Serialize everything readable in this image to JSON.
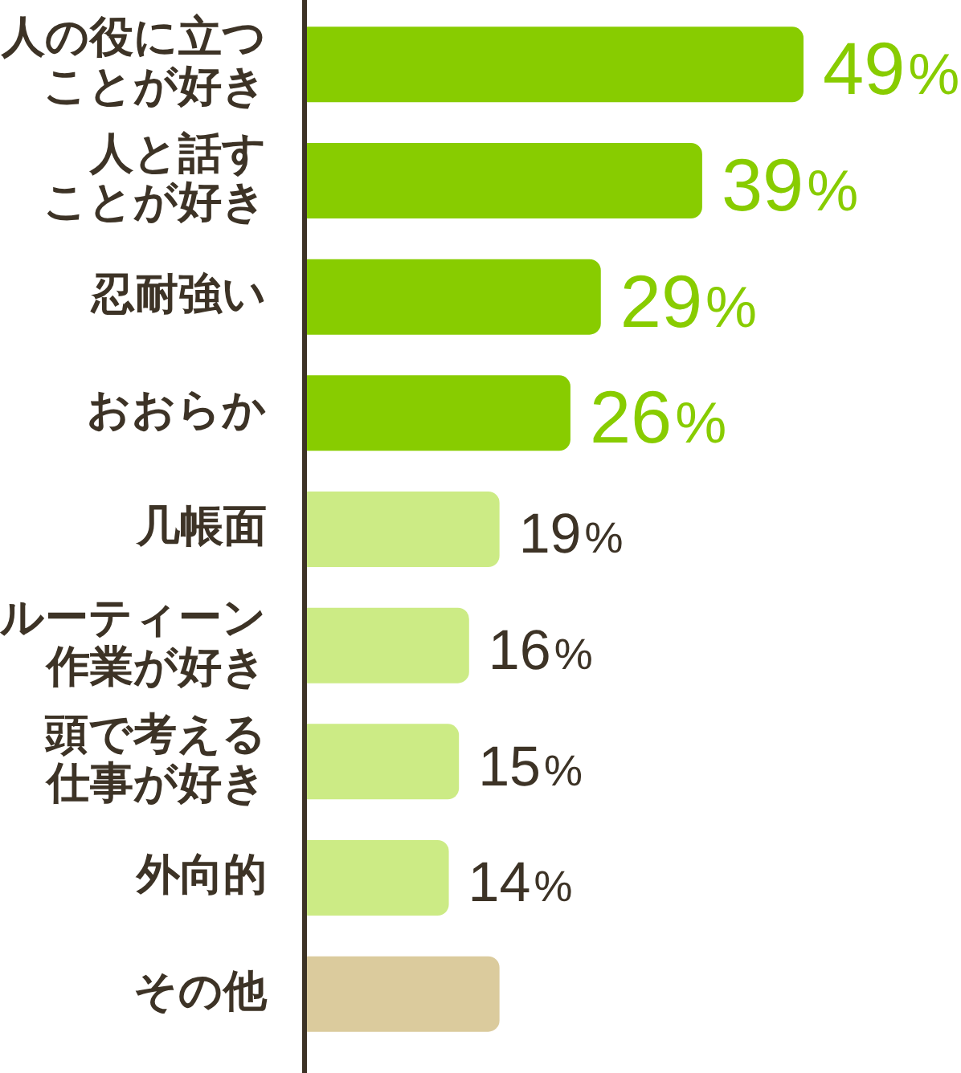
{
  "chart_data": {
    "type": "bar",
    "orientation": "horizontal",
    "categories": [
      "人の役に立つことが好き",
      "人と話すことが好き",
      "忍耐強い",
      "おおらか",
      "几帳面",
      "ルーティーン作業が好き",
      "頭で考える仕事が好き",
      "外向的",
      "その他"
    ],
    "values": [
      49,
      39,
      29,
      26,
      19,
      16,
      15,
      14,
      19
    ],
    "colors": [
      "#88cc00",
      "#88cc00",
      "#88cc00",
      "#88cc00",
      "#cceb85",
      "#cceb85",
      "#cceb85",
      "#cceb85",
      "#dbcb9d"
    ],
    "value_labels": [
      "49%",
      "39%",
      "29%",
      "26%",
      "19%",
      "16%",
      "15%",
      "14%",
      null
    ],
    "tick_labels": "y"
  }
}
